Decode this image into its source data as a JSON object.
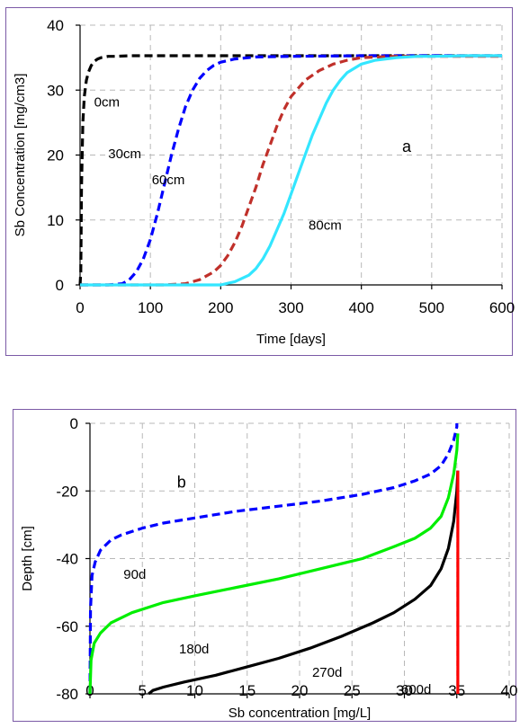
{
  "chart_data": [
    {
      "panel": "a",
      "type": "line",
      "title": "",
      "xlabel": "Time [days]",
      "ylabel": "Sb Concentration  [mg/cm3]",
      "xlim": [
        0,
        600
      ],
      "ylim": [
        0,
        40
      ],
      "xticks": [
        0,
        100,
        200,
        300,
        400,
        500,
        600
      ],
      "yticks": [
        0,
        10,
        20,
        30,
        40
      ],
      "grid": true,
      "legend": "none",
      "annotations": [
        {
          "text": "0cm",
          "x": 20,
          "y": 27.5
        },
        {
          "text": "30cm",
          "x": 40,
          "y": 19.5
        },
        {
          "text": "60cm",
          "x": 102,
          "y": 15.5
        },
        {
          "text": "80cm",
          "x": 325,
          "y": 8.5
        },
        {
          "text": "a",
          "x": 458,
          "y": 20.5
        }
      ],
      "series": [
        {
          "color": "#000000",
          "style": "dashed",
          "x": [
            0,
            1,
            2,
            4,
            6,
            9,
            12,
            16,
            20,
            25,
            30,
            40,
            50,
            70,
            100,
            200,
            400,
            600
          ],
          "y": [
            0,
            2,
            15,
            25,
            29,
            31.5,
            32.8,
            33.8,
            34.4,
            34.8,
            35.0,
            35.2,
            35.2,
            35.3,
            35.3,
            35.3,
            35.3,
            35.3
          ]
        },
        {
          "color": "#0000ff",
          "style": "dashed",
          "x": [
            0,
            40,
            60,
            70,
            80,
            90,
            100,
            110,
            120,
            130,
            140,
            150,
            160,
            170,
            180,
            190,
            200,
            220,
            250,
            300,
            400,
            600
          ],
          "y": [
            0,
            0,
            0.2,
            0.8,
            2,
            4,
            7,
            11,
            15.5,
            20,
            24,
            27.5,
            30,
            31.8,
            33,
            33.8,
            34.3,
            34.8,
            35.1,
            35.2,
            35.3,
            35.3
          ]
        },
        {
          "color": "#c0302a",
          "style": "dashed",
          "x": [
            0,
            120,
            150,
            170,
            190,
            200,
            210,
            220,
            230,
            240,
            250,
            260,
            270,
            280,
            290,
            300,
            320,
            340,
            360,
            380,
            400,
            450,
            600
          ],
          "y": [
            0,
            0,
            0.2,
            0.8,
            2,
            3,
            4.5,
            6.5,
            9,
            12,
            15,
            18.5,
            21.5,
            24.5,
            27,
            29,
            31.5,
            33,
            34,
            34.6,
            35,
            35.2,
            35.2
          ]
        },
        {
          "color": "#33e6ff",
          "style": "solid",
          "x": [
            0,
            200,
            220,
            240,
            250,
            260,
            270,
            280,
            290,
            300,
            310,
            320,
            330,
            340,
            350,
            360,
            370,
            380,
            400,
            420,
            450,
            480,
            500,
            550,
            600
          ],
          "y": [
            0,
            0,
            0.5,
            1.5,
            2.5,
            4,
            6,
            8.5,
            11,
            14,
            17,
            20,
            23,
            25.5,
            28,
            30,
            31.5,
            32.7,
            34,
            34.6,
            35,
            35.2,
            35.2,
            35.3,
            35.3
          ]
        }
      ]
    },
    {
      "panel": "b",
      "type": "line",
      "title": "",
      "xlabel": "Sb concentration [mg/L]",
      "ylabel": "Depth [cm]",
      "xlim": [
        0,
        40
      ],
      "ylim": [
        -80,
        0
      ],
      "xticks": [
        0,
        5,
        10,
        15,
        20,
        25,
        30,
        35,
        40
      ],
      "yticks": [
        0,
        -20,
        -40,
        -60,
        -80
      ],
      "grid": true,
      "legend": "none",
      "annotations": [
        {
          "text": "b",
          "x": 8.3,
          "y": -19
        },
        {
          "text": "90d",
          "x": 3.2,
          "y": -46
        },
        {
          "text": "180d",
          "x": 8.5,
          "y": -68
        },
        {
          "text": "270d",
          "x": 21.2,
          "y": -75
        },
        {
          "text": "600d",
          "x": 29.7,
          "y": -80
        }
      ],
      "series": [
        {
          "color": "#0000ff",
          "style": "dashed",
          "x": [
            0,
            0.05,
            0.2,
            0.5,
            1,
            2,
            3,
            5,
            7,
            10,
            14,
            18,
            22,
            26,
            29,
            31,
            32.5,
            33.5,
            34.2,
            34.7,
            35,
            35
          ],
          "y": [
            -80,
            -55,
            -45,
            -41,
            -37.5,
            -34.5,
            -33,
            -31,
            -29.5,
            -28,
            -26,
            -24.5,
            -23,
            -21,
            -19,
            -17,
            -15,
            -12.5,
            -9,
            -5,
            -1,
            0
          ]
        },
        {
          "color": "#00ee00",
          "style": "solid",
          "x": [
            0,
            0.1,
            0.4,
            1,
            2,
            4,
            7,
            10,
            14,
            18,
            22,
            26,
            29,
            31,
            32.5,
            33.5,
            34.2,
            34.7,
            35,
            35.1
          ],
          "y": [
            -80,
            -70,
            -65,
            -62,
            -59,
            -56,
            -53,
            -51,
            -48.5,
            -46,
            -43,
            -40,
            -36.5,
            -34,
            -31,
            -27.5,
            -22,
            -15,
            -8,
            -3
          ]
        },
        {
          "color": "#000000",
          "style": "solid",
          "x": [
            5.6,
            6,
            7,
            9,
            12,
            15,
            18,
            21,
            24,
            27,
            29,
            31,
            32.5,
            33.5,
            34.2,
            34.7,
            35,
            35.1
          ],
          "y": [
            -80,
            -79,
            -78,
            -76.5,
            -74.5,
            -72,
            -69.5,
            -66.5,
            -63,
            -59,
            -56,
            -52,
            -48,
            -43,
            -37,
            -29,
            -20,
            -14
          ]
        },
        {
          "color": "#ff0000",
          "style": "solid",
          "x": [
            35.1,
            35.1
          ],
          "y": [
            -80,
            -14
          ]
        }
      ]
    }
  ]
}
